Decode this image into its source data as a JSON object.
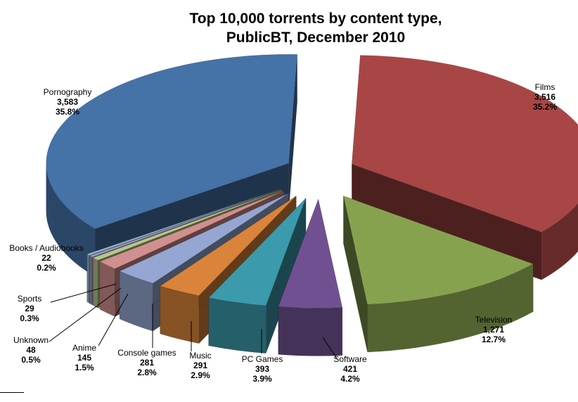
{
  "chart_data": {
    "type": "pie",
    "title_lines": [
      "Top 10,000 torrents by content type,",
      "PublicBT, December 2010"
    ],
    "exploded": true,
    "three_d": true,
    "slices": [
      {
        "label": "Films",
        "value": 3516,
        "value_text": "3,516",
        "percent_text": "35.2%",
        "color": "#A84645"
      },
      {
        "label": "Television",
        "value": 1271,
        "value_text": "1,271",
        "percent_text": "12.7%",
        "color": "#87A24F"
      },
      {
        "label": "Software",
        "value": 421,
        "value_text": "421",
        "percent_text": "4.2%",
        "color": "#705090"
      },
      {
        "label": "PC Games",
        "value": 393,
        "value_text": "393",
        "percent_text": "3.9%",
        "color": "#3B9AAB"
      },
      {
        "label": "Music",
        "value": 291,
        "value_text": "291",
        "percent_text": "2.9%",
        "color": "#D9843A"
      },
      {
        "label": "Console games",
        "value": 281,
        "value_text": "281",
        "percent_text": "2.8%",
        "color": "#95A6D2"
      },
      {
        "label": "Anime",
        "value": 145,
        "value_text": "145",
        "percent_text": "1.5%",
        "color": "#D18F8E"
      },
      {
        "label": "Unknown",
        "value": 48,
        "value_text": "48",
        "percent_text": "0.5%",
        "color": "#B3C88A"
      },
      {
        "label": "Sports",
        "value": 29,
        "value_text": "29",
        "percent_text": "0.3%",
        "color": "#A38FBD"
      },
      {
        "label": "Books / Audiobooks",
        "value": 22,
        "value_text": "22",
        "percent_text": "0.2%",
        "color": "#8CC3D3"
      },
      {
        "label": "Pornography",
        "value": 3583,
        "value_text": "3,583",
        "percent_text": "35.8%",
        "color": "#4572A7"
      }
    ]
  }
}
